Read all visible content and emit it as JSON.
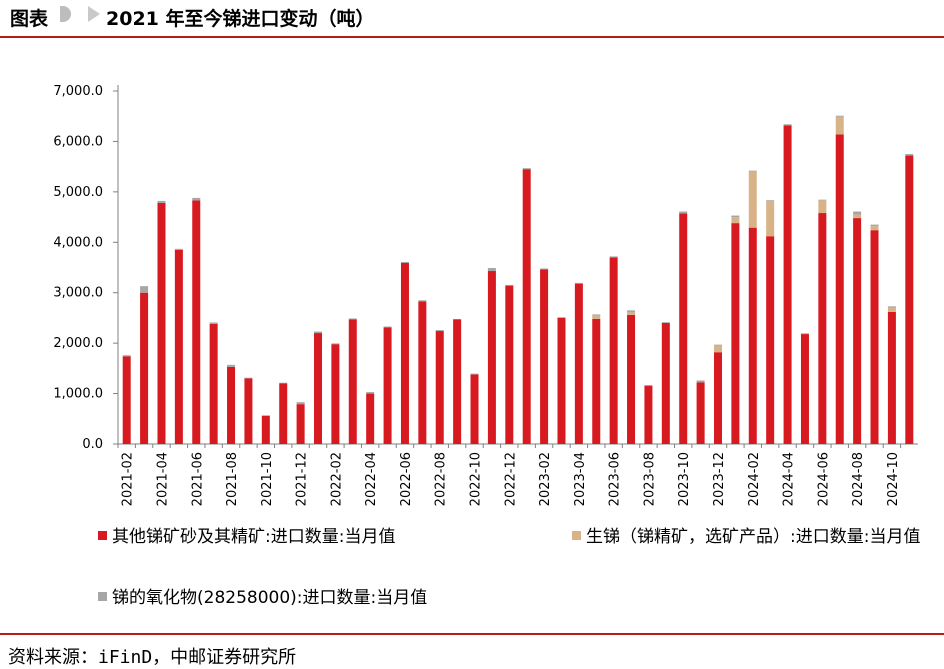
{
  "header": {
    "label": "图表",
    "title": "2021 年至今锑进口变动（吨）"
  },
  "source": "资料来源：iFinD，中邮证券研究所",
  "colors": {
    "series1": "#d71920",
    "series2": "#d9b388",
    "series3": "#a6a6a6",
    "rule": "#b51c1c"
  },
  "chart_data": {
    "type": "bar",
    "stacked": true,
    "ylim": [
      0,
      7000
    ],
    "yticks": [
      0,
      1000,
      2000,
      3000,
      4000,
      5000,
      6000,
      7000
    ],
    "ytick_labels": [
      "0.0",
      "1,000.0",
      "2,000.0",
      "3,000.0",
      "4,000.0",
      "5,000.0",
      "6,000.0",
      "7,000.0"
    ],
    "categories": [
      "2021-02",
      "2021-03",
      "2021-04",
      "2021-05",
      "2021-06",
      "2021-07",
      "2021-08",
      "2021-09",
      "2021-10",
      "2021-11",
      "2021-12",
      "2022-01",
      "2022-02",
      "2022-03",
      "2022-04",
      "2022-05",
      "2022-06",
      "2022-07",
      "2022-08",
      "2022-09",
      "2022-10",
      "2022-11",
      "2022-12",
      "2023-01",
      "2023-02",
      "2023-03",
      "2023-04",
      "2023-05",
      "2023-06",
      "2023-07",
      "2023-08",
      "2023-09",
      "2023-10",
      "2023-11",
      "2023-12",
      "2024-01",
      "2024-02",
      "2024-03",
      "2024-04",
      "2024-05",
      "2024-06",
      "2024-07",
      "2024-08",
      "2024-09",
      "2024-10",
      "2024-11"
    ],
    "xtick_labels": [
      "2021-02",
      "2021-04",
      "2021-06",
      "2021-08",
      "2021-10",
      "2021-12",
      "2022-02",
      "2022-04",
      "2022-06",
      "2022-08",
      "2022-10",
      "2022-12",
      "2023-02",
      "2023-04",
      "2023-06",
      "2023-08",
      "2023-10",
      "2023-12",
      "2024-02",
      "2024-04",
      "2024-06",
      "2024-08",
      "2024-10"
    ],
    "series": [
      {
        "name": "其他锑矿砂及其精矿:进口数量:当月值",
        "values": [
          1740,
          3000,
          4780,
          3850,
          4830,
          2380,
          1530,
          1300,
          560,
          1200,
          790,
          2200,
          1980,
          2470,
          1000,
          2310,
          3590,
          2830,
          2240,
          2470,
          1380,
          3430,
          3140,
          5450,
          3460,
          2500,
          3180,
          2480,
          3700,
          2560,
          1150,
          2400,
          4570,
          1220,
          1820,
          4380,
          4290,
          4120,
          6320,
          2180,
          4580,
          6140,
          4480,
          4240,
          2620,
          5720
        ]
      },
      {
        "name": "生锑（锑精矿，选矿产品）:进口数量:当月值",
        "values": [
          0,
          0,
          0,
          0,
          0,
          0,
          0,
          0,
          0,
          0,
          0,
          0,
          0,
          0,
          0,
          0,
          0,
          0,
          0,
          0,
          0,
          0,
          0,
          0,
          0,
          0,
          0,
          70,
          0,
          50,
          0,
          0,
          0,
          0,
          130,
          120,
          1110,
          700,
          0,
          0,
          250,
          350,
          70,
          80,
          80,
          0
        ]
      },
      {
        "name": "锑的氧化物(28258000):进口数量:当月值",
        "values": [
          20,
          130,
          40,
          20,
          50,
          30,
          40,
          15,
          10,
          15,
          40,
          30,
          15,
          20,
          30,
          20,
          20,
          20,
          20,
          10,
          15,
          60,
          15,
          20,
          20,
          15,
          15,
          20,
          20,
          40,
          20,
          15,
          40,
          40,
          20,
          30,
          20,
          15,
          20,
          15,
          15,
          20,
          60,
          30,
          30,
          30
        ]
      }
    ]
  }
}
